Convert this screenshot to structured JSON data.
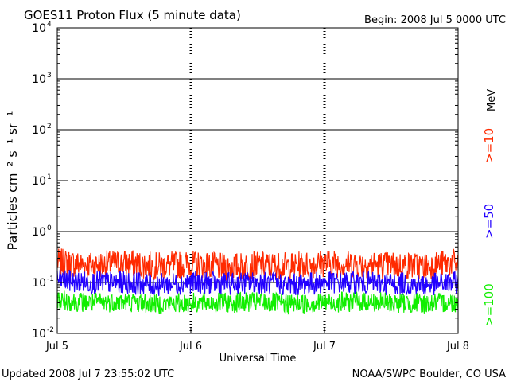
{
  "header": {
    "title": "GOES11 Proton Flux (5 minute data)",
    "begin": "Begin: 2008 Jul 5 0000 UTC"
  },
  "footer": {
    "updated": "Updated 2008 Jul  7 23:55:02 UTC",
    "source": "NOAA/SWPC Boulder, CO USA"
  },
  "chart_data": {
    "type": "line",
    "title": "GOES11 Proton Flux (5 minute data)",
    "xlabel": "Universal Time",
    "ylabel": "Particles cm⁻² s⁻¹ sr⁻¹",
    "yscale": "log",
    "ylim": [
      0.01,
      10000
    ],
    "y_ticks": [
      {
        "base": "10",
        "exp": "4"
      },
      {
        "base": "10",
        "exp": "3"
      },
      {
        "base": "10",
        "exp": "2"
      },
      {
        "base": "10",
        "exp": "1"
      },
      {
        "base": "10",
        "exp": "0"
      },
      {
        "base": "10",
        "exp": "-1"
      },
      {
        "base": "10",
        "exp": "-2"
      }
    ],
    "x_categories": [
      "Jul 5",
      "Jul 6",
      "Jul 7",
      "Jul 8"
    ],
    "xlim": [
      "2008-07-05 00:00",
      "2008-07-08 00:00"
    ],
    "grid": true,
    "legend_position": "right, vertical",
    "legend_unit": "MeV",
    "series": [
      {
        "name": ">=10",
        "color": "#ff2a00",
        "x": [
          "2008-07-05 00:00",
          "2008-07-05 06:00",
          "2008-07-05 12:00",
          "2008-07-05 18:00",
          "2008-07-06 00:00",
          "2008-07-06 06:00",
          "2008-07-06 12:00",
          "2008-07-06 18:00",
          "2008-07-07 00:00",
          "2008-07-07 06:00",
          "2008-07-07 12:00",
          "2008-07-07 18:00",
          "2008-07-08 00:00"
        ],
        "values": [
          0.25,
          0.22,
          0.24,
          0.21,
          0.23,
          0.2,
          0.22,
          0.21,
          0.24,
          0.23,
          0.22,
          0.21,
          0.25
        ]
      },
      {
        "name": ">=50",
        "color": "#2200ff",
        "x": [
          "2008-07-05 00:00",
          "2008-07-05 06:00",
          "2008-07-05 12:00",
          "2008-07-05 18:00",
          "2008-07-06 00:00",
          "2008-07-06 06:00",
          "2008-07-06 12:00",
          "2008-07-06 18:00",
          "2008-07-07 00:00",
          "2008-07-07 06:00",
          "2008-07-07 12:00",
          "2008-07-07 18:00",
          "2008-07-08 00:00"
        ],
        "values": [
          0.11,
          0.1,
          0.1,
          0.09,
          0.1,
          0.095,
          0.1,
          0.09,
          0.1,
          0.1,
          0.095,
          0.09,
          0.1
        ]
      },
      {
        "name": ">=100",
        "color": "#11ee00",
        "x": [
          "2008-07-05 00:00",
          "2008-07-05 06:00",
          "2008-07-05 12:00",
          "2008-07-05 18:00",
          "2008-07-06 00:00",
          "2008-07-06 06:00",
          "2008-07-06 12:00",
          "2008-07-06 18:00",
          "2008-07-07 00:00",
          "2008-07-07 06:00",
          "2008-07-07 12:00",
          "2008-07-07 18:00",
          "2008-07-08 00:00"
        ],
        "values": [
          0.045,
          0.04,
          0.042,
          0.038,
          0.04,
          0.04,
          0.041,
          0.038,
          0.04,
          0.042,
          0.04,
          0.039,
          0.041
        ]
      }
    ]
  }
}
